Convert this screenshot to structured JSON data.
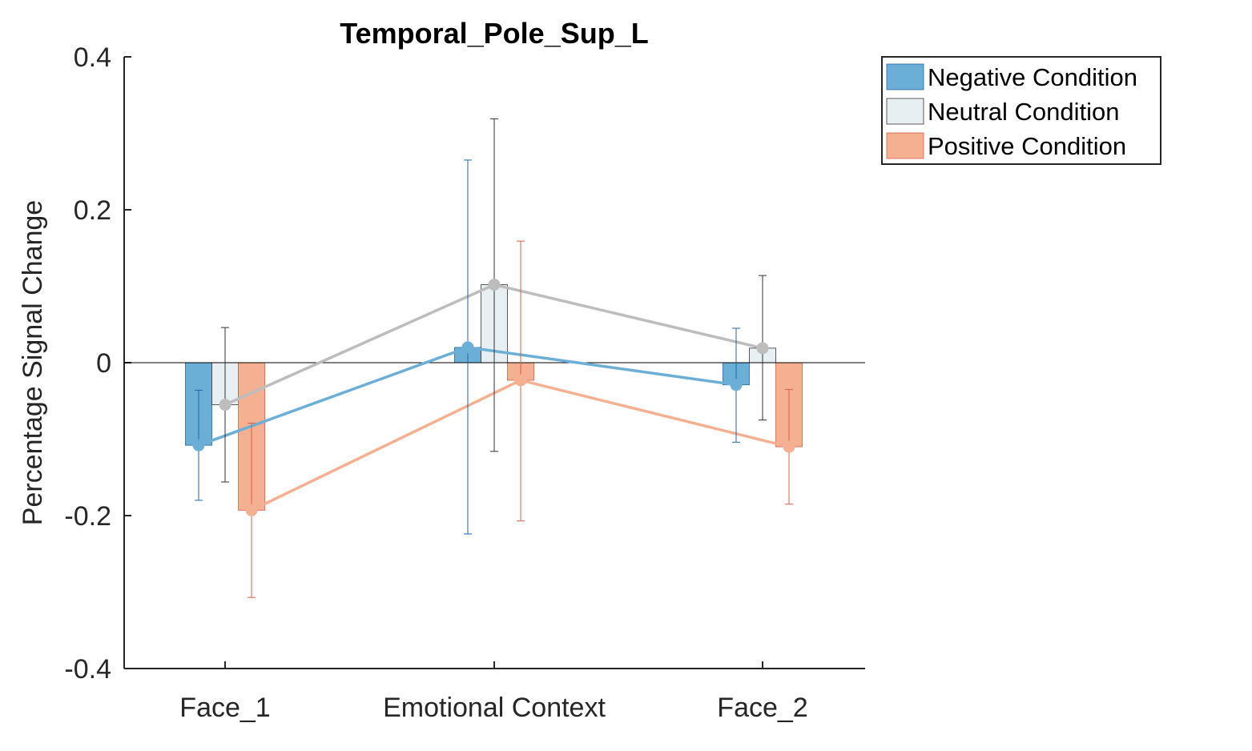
{
  "chart_data": {
    "type": "bar",
    "title": "Temporal_Pole_Sup_L",
    "xlabel": "",
    "ylabel": "Percentage Signal Change",
    "ylim": [
      -0.4,
      0.4
    ],
    "yticks": [
      -0.4,
      -0.2,
      0,
      0.2,
      0.4
    ],
    "ytick_labels": [
      "-0.4",
      "-0.2",
      "0",
      "0.2",
      "0.4"
    ],
    "categories": [
      "Face_1",
      "Emotional Context",
      "Face_2"
    ],
    "grid": false,
    "legend_position": "top-right, outside plot",
    "zero_line": true,
    "series": [
      {
        "name": "Negative Condition",
        "color": "#6BAED6",
        "edge": "#2166AC",
        "values": [
          -0.108,
          0.02,
          -0.029
        ],
        "err_low": [
          -0.18,
          -0.224,
          -0.104
        ],
        "err_high": [
          -0.036,
          0.265,
          0.045
        ]
      },
      {
        "name": "Neutral Condition",
        "color": "#E8EFF3",
        "edge": "#333333",
        "values": [
          -0.055,
          0.102,
          0.019
        ],
        "err_low": [
          -0.156,
          -0.116,
          -0.075
        ],
        "err_high": [
          0.046,
          0.319,
          0.114
        ]
      },
      {
        "name": "Positive Condition",
        "color": "#F4B090",
        "edge": "#D6604D",
        "values": [
          -0.193,
          -0.023,
          -0.11
        ],
        "err_low": [
          -0.307,
          -0.207,
          -0.185
        ],
        "err_high": [
          -0.079,
          0.159,
          -0.035
        ]
      }
    ],
    "line_colors": [
      "#6BAED6",
      "#BDBDBD",
      "#F4B090"
    ]
  }
}
